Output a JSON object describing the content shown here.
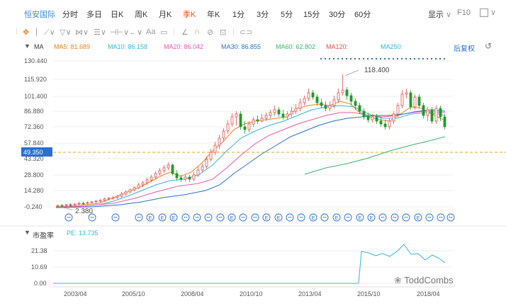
{
  "tabs": {
    "brand": "恒安国际",
    "periods": [
      "分时",
      "多日",
      "日K",
      "周K",
      "月K",
      "季K",
      "年K",
      "1分",
      "3分",
      "5分",
      "15分",
      "30分",
      "60分"
    ],
    "active": "季K",
    "display": "显示",
    "f10": "F10"
  },
  "toolbar": {
    "font_tool": "Aa"
  },
  "ma_bar": {
    "label": "MA",
    "ma5": "MA5: 81.689",
    "ma10": "MA10: 86.158",
    "ma20": "MA20: 86.042",
    "ma30": "MA30: 86.855",
    "ma60": "MA60: 62.802",
    "ma120": "MA120:",
    "ma250": "MA250:",
    "adjust": "后复权"
  },
  "colors": {
    "up": "#e84e4e",
    "down": "#1f9a2a",
    "ma5": "#e8821c",
    "ma10": "#35b4d8",
    "ma20": "#e85aa8",
    "ma30": "#2a6fd1",
    "ma60": "#3cb36a",
    "ma120": "#e84e4e",
    "ma250": "#35b4d8"
  },
  "price_axis": {
    "ticks": [
      "130.440",
      "115.920",
      "101.400",
      "86.880",
      "72.360",
      "57.840",
      "43.320",
      "28.800",
      "14.280",
      "-0.240"
    ],
    "ref_line": "49.350"
  },
  "annotations": {
    "high": "118.400",
    "low": "2.380"
  },
  "pe_bar": {
    "label": "市盈率",
    "value": "PE: 13.735"
  },
  "pe_axis": {
    "ticks": [
      "21.38",
      "10.69",
      "0.00"
    ]
  },
  "x_axis": {
    "labels": [
      "2003/04",
      "2005/10",
      "2008/04",
      "2010/10",
      "2013/04",
      "2015/10",
      "2018/04"
    ]
  },
  "watermark": "ToddCombs",
  "chart_data": {
    "type": "candlestick",
    "period": "quarterly",
    "x_labels": [
      "2003/04",
      "2005/10",
      "2008/04",
      "2010/10",
      "2013/04",
      "2015/10",
      "2018/04"
    ],
    "ylim": [
      -0.24,
      130.44
    ],
    "pe_ylim": [
      0,
      21.38
    ],
    "high_marker": 118.4,
    "low_marker": 2.38
  }
}
